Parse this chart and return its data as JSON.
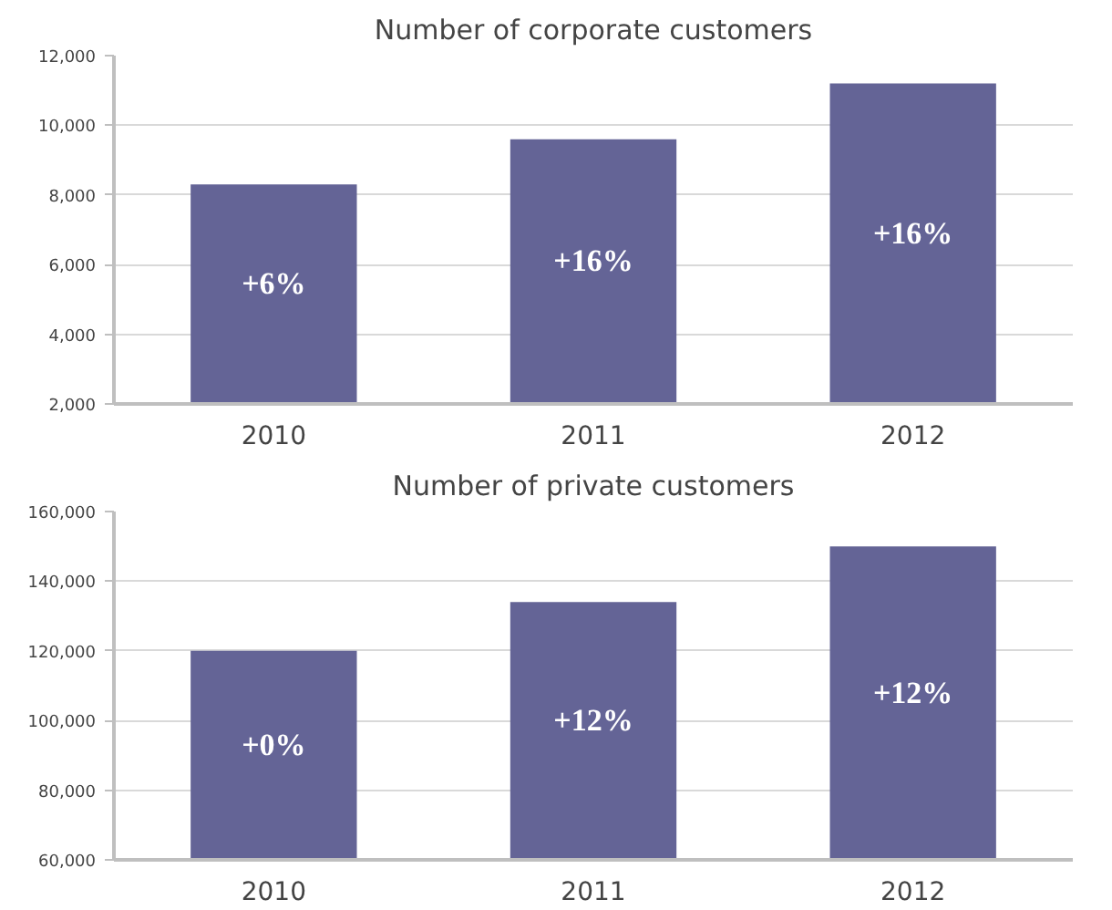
{
  "chart_data": [
    {
      "type": "bar",
      "title": "Number of corporate customers",
      "categories": [
        "2010",
        "2011",
        "2012"
      ],
      "values": [
        8300,
        9600,
        11200
      ],
      "color": "#646496",
      "annotations": [
        "+6%",
        "+16%",
        "+16%"
      ],
      "ylim": [
        2000,
        12000
      ],
      "yticks": [
        {
          "value": 2000,
          "label": "2,000"
        },
        {
          "value": 4000,
          "label": "4,000"
        },
        {
          "value": 6000,
          "label": "6,000"
        },
        {
          "value": 8000,
          "label": "8,000"
        },
        {
          "value": 10000,
          "label": "10,000"
        },
        {
          "value": 12000,
          "label": "12,000"
        }
      ],
      "grid": "y"
    },
    {
      "type": "bar",
      "title": "Number of private customers",
      "categories": [
        "2010",
        "2011",
        "2012"
      ],
      "values": [
        120000,
        134000,
        150000
      ],
      "color": "#646496",
      "annotations": [
        "+0%",
        "+12%",
        "+12%"
      ],
      "ylim": [
        60000,
        160000
      ],
      "yticks": [
        {
          "value": 60000,
          "label": "60,000"
        },
        {
          "value": 80000,
          "label": "80,000"
        },
        {
          "value": 100000,
          "label": "100,000"
        },
        {
          "value": 120000,
          "label": "120,000"
        },
        {
          "value": 140000,
          "label": "140,000"
        },
        {
          "value": 160000,
          "label": "160,000"
        }
      ],
      "grid": "y"
    }
  ]
}
